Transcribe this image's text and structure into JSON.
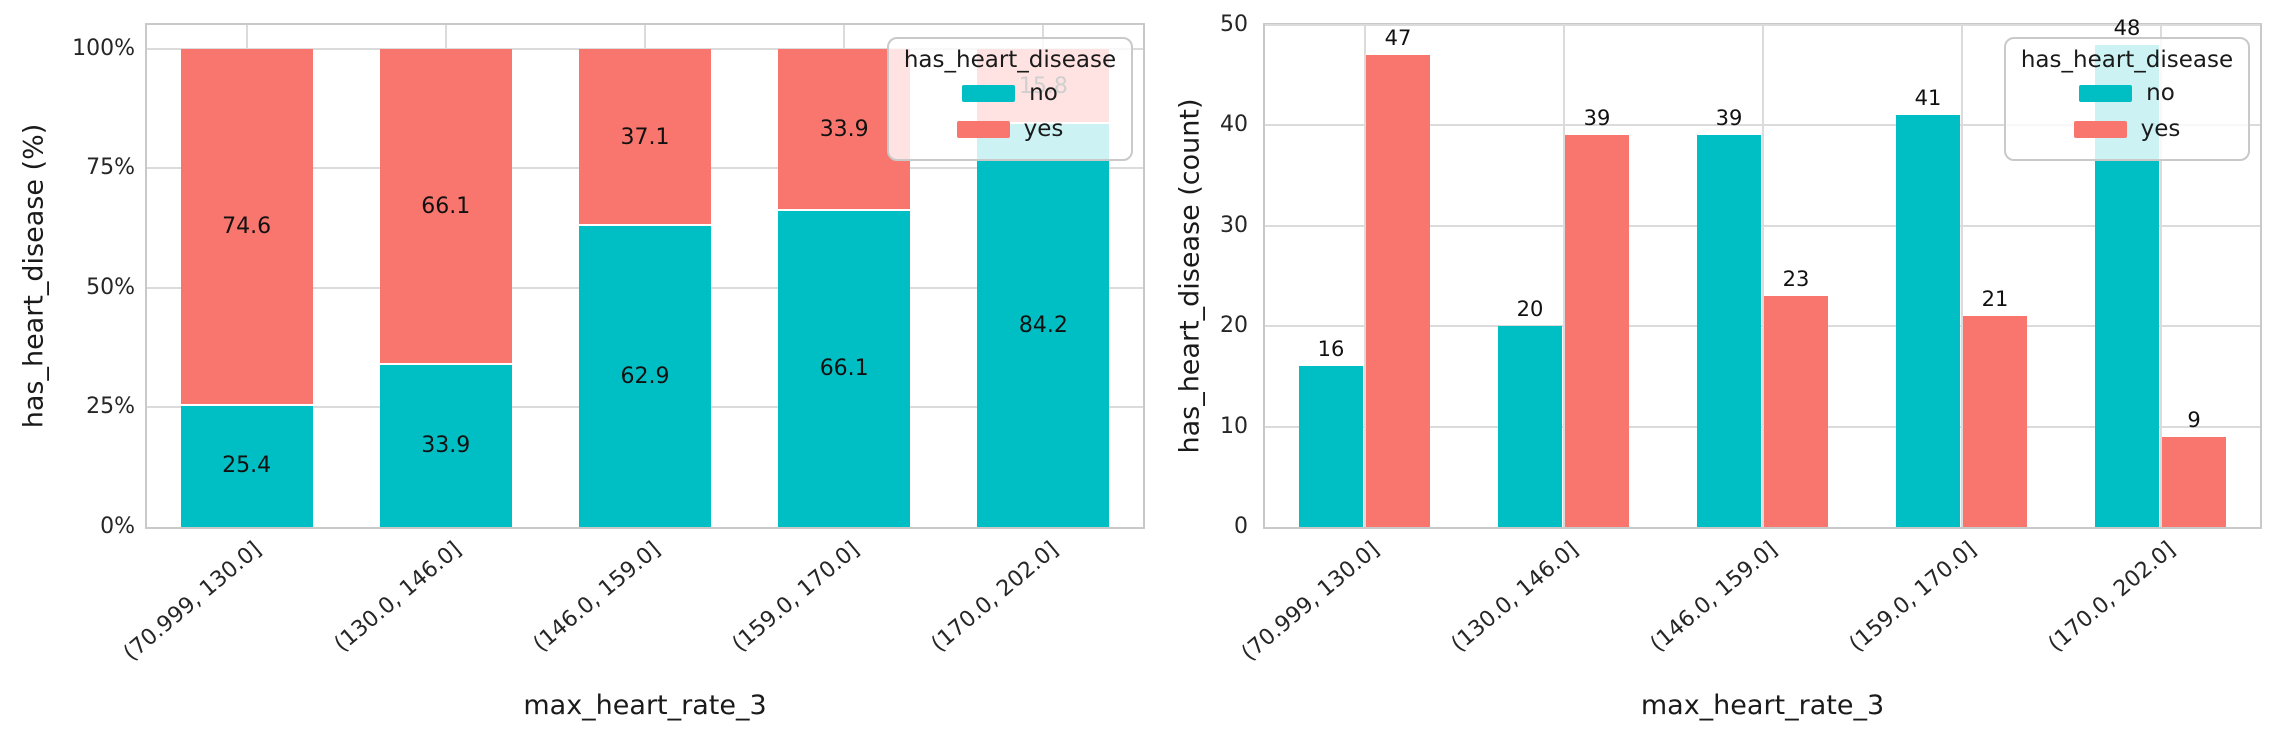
{
  "page": {
    "background": "#FFFFFF"
  },
  "colors": {
    "series_no": "#00BFC4",
    "series_yes": "#F8766D",
    "grid": "#DBDBDB",
    "spine": "#C9C9C9",
    "text": "#262626"
  },
  "chart_data": [
    {
      "type": "bar",
      "mode": "stacked",
      "title": "",
      "xlabel": "max_heart_rate_3",
      "ylabel": "has_heart_disease (%)",
      "categories": [
        "(70.999, 130.0]",
        "(130.0, 146.0]",
        "(146.0, 159.0]",
        "(159.0, 170.0]",
        "(170.0, 202.0]"
      ],
      "series": [
        {
          "name": "no",
          "color": "#00BFC4",
          "values": [
            25.4,
            33.9,
            62.9,
            66.1,
            84.2
          ],
          "labels": [
            "25.4",
            "33.9",
            "62.9",
            "66.1",
            "84.2"
          ]
        },
        {
          "name": "yes",
          "color": "#F8766D",
          "values": [
            74.6,
            66.1,
            37.1,
            33.9,
            15.8
          ],
          "labels": [
            "74.6",
            "66.1",
            "37.1",
            "33.9",
            "15.8"
          ]
        }
      ],
      "ylim": [
        0,
        105
      ],
      "yticks": [
        {
          "value": 0,
          "label": "0%"
        },
        {
          "value": 25,
          "label": "25%"
        },
        {
          "value": 50,
          "label": "50%"
        },
        {
          "value": 75,
          "label": "75%"
        },
        {
          "value": 100,
          "label": "100%"
        }
      ],
      "grid": true,
      "legend": {
        "title": "has_heart_disease",
        "position": "upper right",
        "entries": [
          "no",
          "yes"
        ]
      }
    },
    {
      "type": "bar",
      "mode": "grouped",
      "title": "",
      "xlabel": "max_heart_rate_3",
      "ylabel": "has_heart_disease (count)",
      "categories": [
        "(70.999, 130.0]",
        "(130.0, 146.0]",
        "(146.0, 159.0]",
        "(159.0, 170.0]",
        "(170.0, 202.0]"
      ],
      "series": [
        {
          "name": "no",
          "color": "#00BFC4",
          "values": [
            16,
            20,
            39,
            41,
            48
          ],
          "labels": [
            "16",
            "20",
            "39",
            "41",
            "48"
          ]
        },
        {
          "name": "yes",
          "color": "#F8766D",
          "values": [
            47,
            39,
            23,
            21,
            9
          ],
          "labels": [
            "47",
            "39",
            "23",
            "21",
            "9"
          ]
        }
      ],
      "ylim": [
        0,
        50
      ],
      "yticks": [
        {
          "value": 0,
          "label": "0"
        },
        {
          "value": 10,
          "label": "10"
        },
        {
          "value": 20,
          "label": "20"
        },
        {
          "value": 30,
          "label": "30"
        },
        {
          "value": 40,
          "label": "40"
        },
        {
          "value": 50,
          "label": "50"
        }
      ],
      "grid": true,
      "legend": {
        "title": "has_heart_disease",
        "position": "upper right",
        "entries": [
          "no",
          "yes"
        ]
      }
    }
  ]
}
